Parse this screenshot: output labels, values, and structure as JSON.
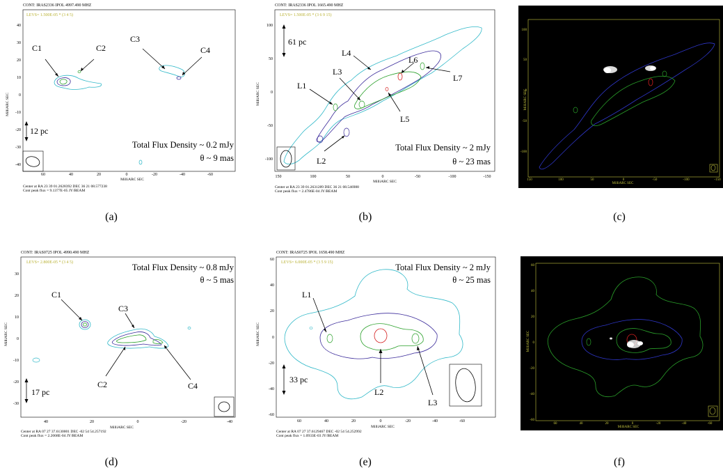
{
  "panels": {
    "a": {
      "caption": "(a)",
      "header": "CONT: IRAS2336  IPOL  4997.490 MHZ",
      "levs": "LEVS= 1.500E-05 * (3  4  5)",
      "ylabel": "MilliARC SEC",
      "xlabel": "MilliARC SEC",
      "yticks": [
        "40",
        "30",
        "20",
        "10",
        "0",
        "-10",
        "-20",
        "-30",
        "-40"
      ],
      "xticks": [
        "60",
        "40",
        "20",
        "0",
        "-20",
        "-40",
        "-60"
      ],
      "labels": [
        "C1",
        "C2",
        "C3",
        "C4"
      ],
      "scale": "12 pc",
      "flux": "Total Flux Density ~ 0.2 mJy",
      "theta": "θ ~ 9 mas",
      "footer1": "Center at RA 23 39 01.2628392  DEC 36 21 08.577238",
      "footer2": "Cont peak flux = 9.1377E-05 JY/BEAM"
    },
    "b": {
      "caption": "(b)",
      "header": "CONT: IRAS2336  IPOL  1665.490 MHZ",
      "levs": "LEVS= 1.500E-05 * (3  6  9  15)",
      "ylabel": "MilliARC SEC",
      "xlabel": "MilliARC SEC",
      "yticks": [
        "100",
        "50",
        "0",
        "-50",
        "-100"
      ],
      "xticks": [
        "150",
        "100",
        "50",
        "0",
        "-50",
        "-100",
        "-150"
      ],
      "labels": [
        "L1",
        "L2",
        "L3",
        "L4",
        "L5",
        "L6",
        "L7"
      ],
      "scale": "61 pc",
      "flux": "Total Flux Density ~ 2 mJy",
      "theta": "θ ~ 23 mas",
      "footer1": "Center at RA 23 39 01.2631289  DEC 36 21 08.546988",
      "footer2": "Cont peak flux = 2.4786E-04 JY/BEAM"
    },
    "c": {
      "caption": "(c)",
      "ylabel": "MilliARC SEC",
      "xlabel": "MilliARC SEC",
      "yticks": [
        "100",
        "50",
        "0",
        "-50",
        "-100"
      ],
      "xticks": [
        "150",
        "100",
        "50",
        "0",
        "-50",
        "-100",
        "-150"
      ]
    },
    "d": {
      "caption": "(d)",
      "header": "CONT: IRAS0725  IPOL  4990.490 MHZ",
      "levs": "LEVS= 2.800E-05 * (3  4  5)",
      "ylabel": "MilliARC SEC",
      "xlabel": "MilliARC SEC",
      "yticks": [
        "30",
        "20",
        "10",
        "0",
        "-10",
        "-20",
        "-30"
      ],
      "xticks": [
        "40",
        "20",
        "0",
        "-20",
        "-40"
      ],
      "labels": [
        "C1",
        "C2",
        "C3",
        "C4"
      ],
      "scale": "17 pc",
      "flux": "Total Flux Density ~ 0.8 mJy",
      "theta": "θ ~ 5 mas",
      "footer1": "Center at RA 07 27 37.6130001  DEC -02 54 54.257192",
      "footer2": "Cont peak flux = 2.2068E-04 JY/BEAM"
    },
    "e": {
      "caption": "(e)",
      "header": "CONT: IRAS0725  IPOL  1658.490 MHZ",
      "levs": "LEVS= 6.000E-05 * (3  5  9  15)",
      "ylabel": "MilliARC SEC",
      "xlabel": "MilliARC SEC",
      "yticks": [
        "60",
        "40",
        "20",
        "0",
        "-20",
        "-40",
        "-60"
      ],
      "xticks": [
        "60",
        "40",
        "20",
        "0",
        "-20",
        "-40",
        "-60"
      ],
      "labels": [
        "L1",
        "L2",
        "L3"
      ],
      "scale": "33 pc",
      "flux": "Total Flux Density ~ 2 mJy",
      "theta": "θ ~ 25 mas",
      "footer1": "Center at RA 07 27 37.6129467  DEC -02 54 54.252992",
      "footer2": "Cont peak flux = 1.0933E-03 JY/BEAM"
    },
    "f": {
      "caption": "(f)",
      "ylabel": "MilliARC SEC",
      "xlabel": "MilliARC SEC",
      "yticks": [
        "60",
        "40",
        "20",
        "0",
        "-20",
        "-40",
        "-60"
      ],
      "xticks": [
        "60",
        "40",
        "20",
        "0",
        "-20",
        "-40",
        "-60"
      ]
    }
  },
  "colors": {
    "level1": "#2fb8c8",
    "level2": "#3a2a9a",
    "level3": "#2aa02a",
    "level4": "#d42020",
    "levs_text": "#b8b030",
    "dark_bg": "#000000",
    "dark_axis": "#c8c840"
  }
}
